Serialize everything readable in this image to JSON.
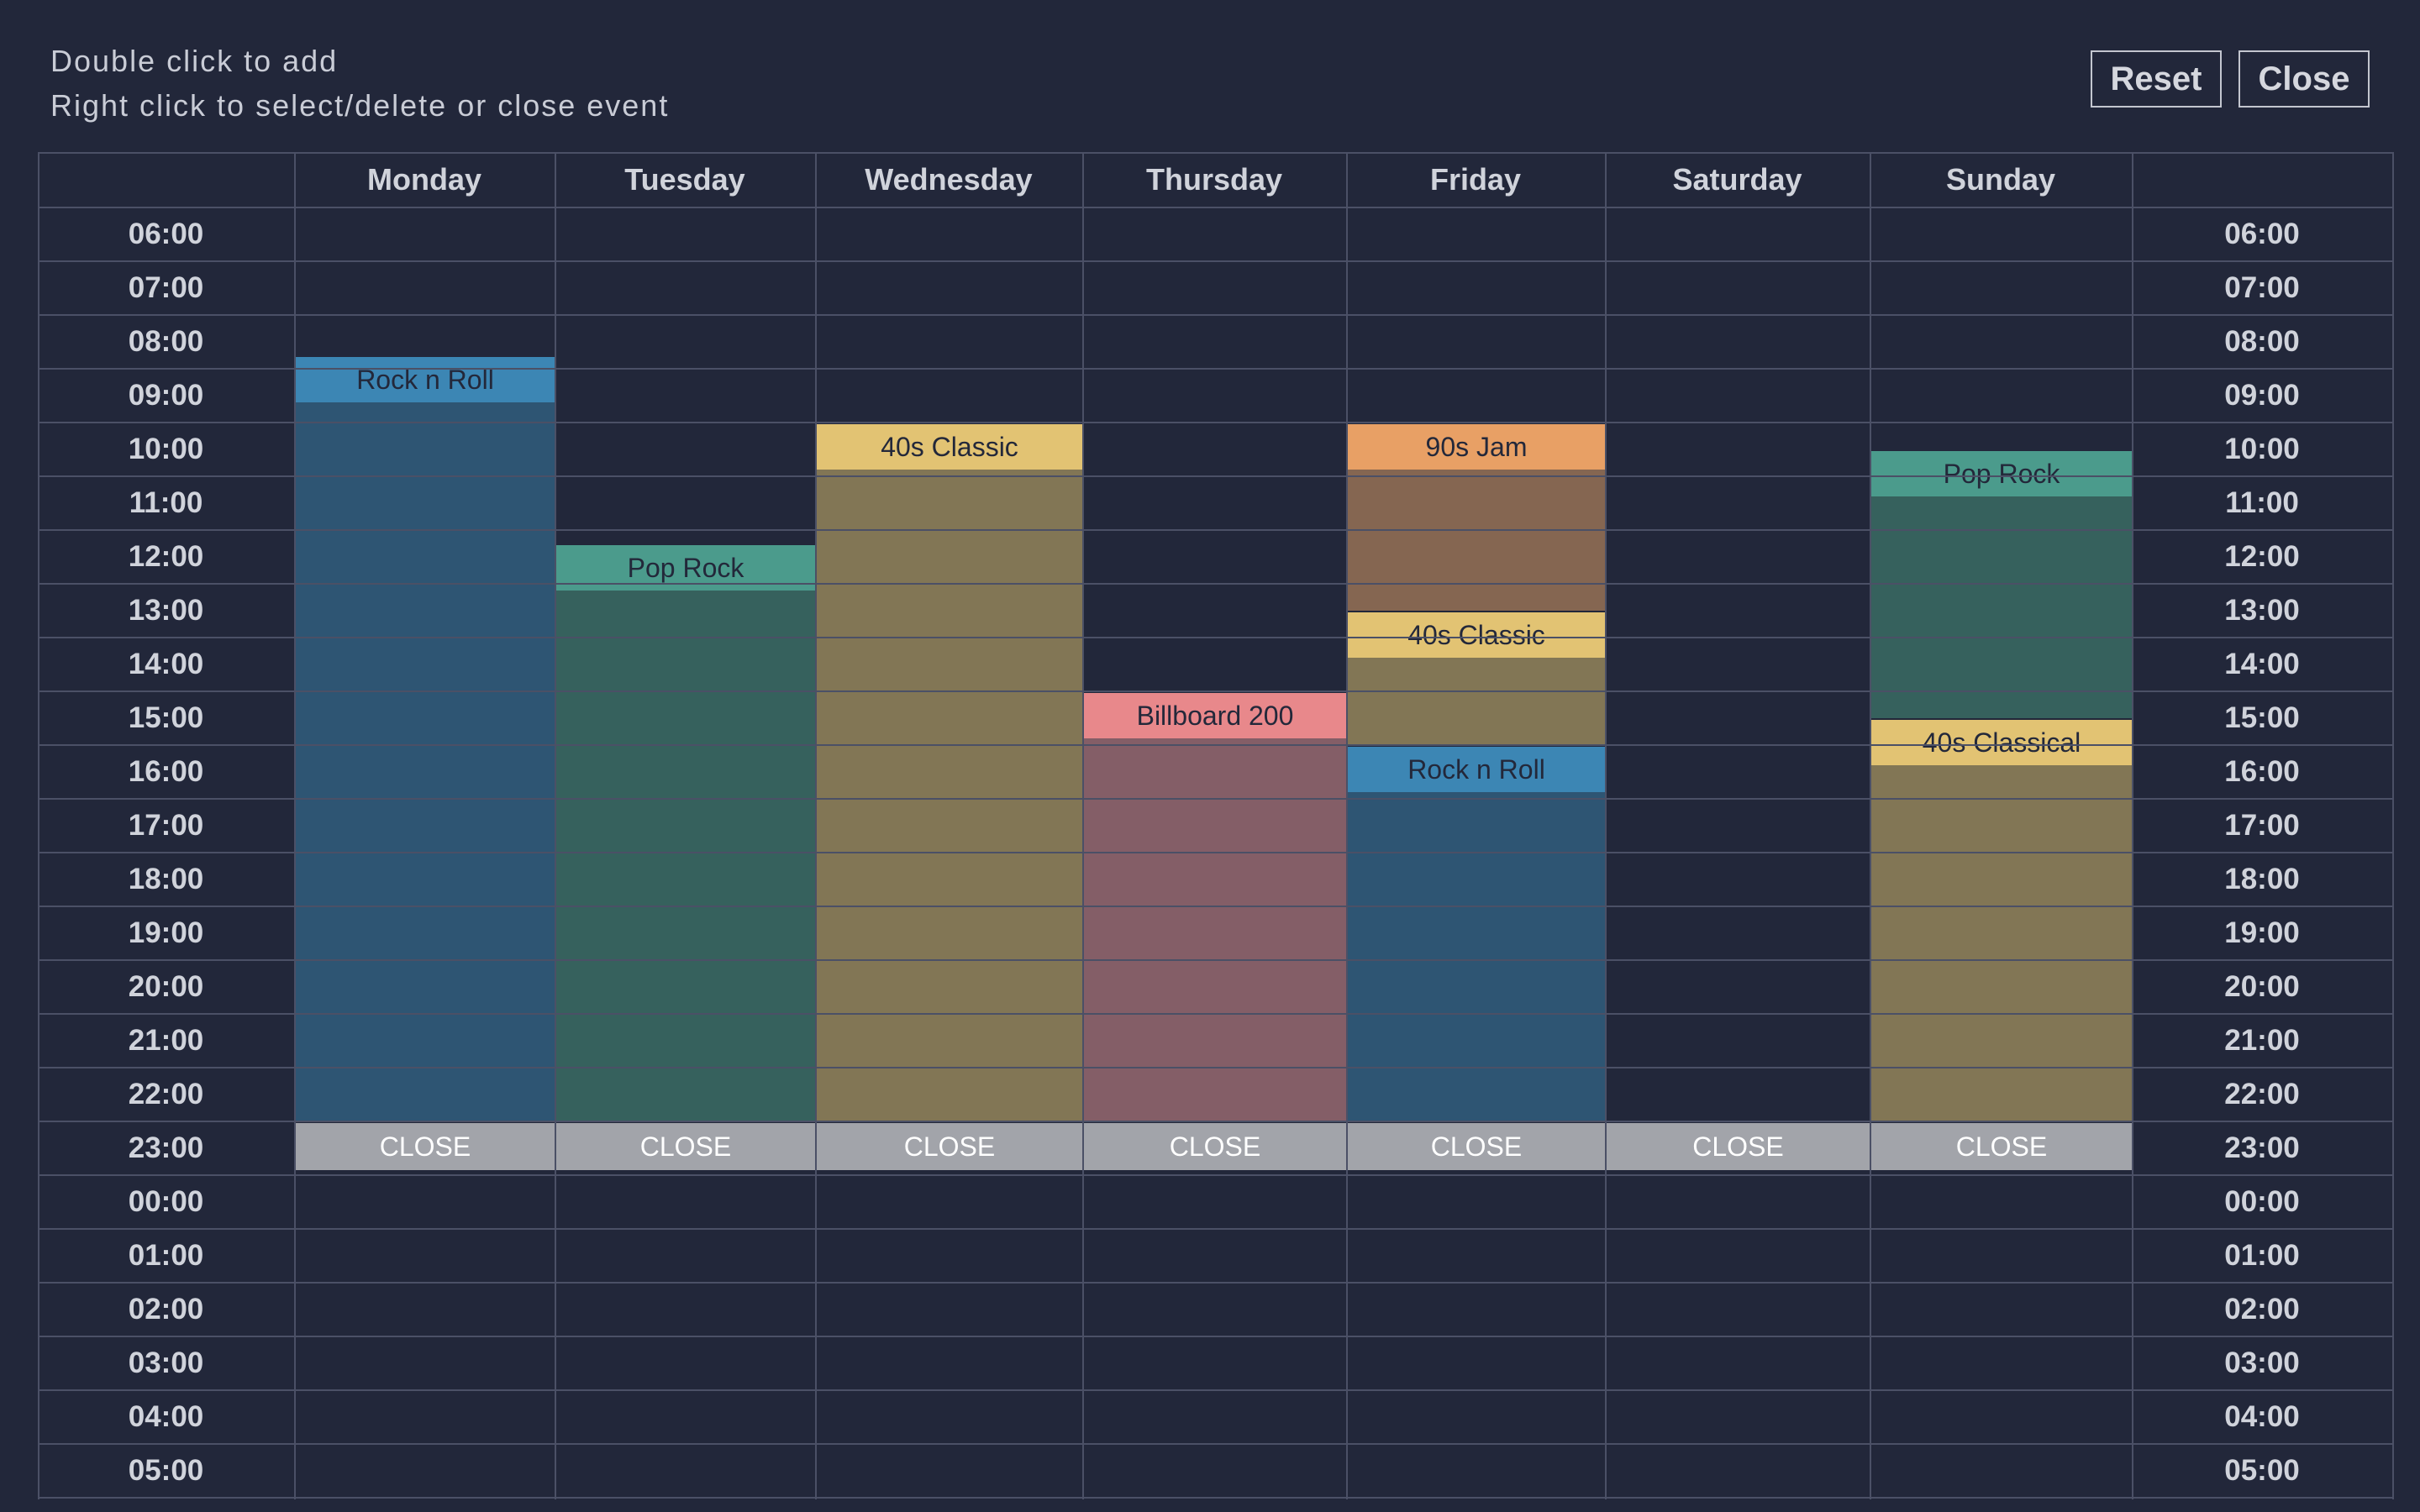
{
  "hints": {
    "line1": "Double click to add",
    "line2": "Right click to select/delete or close event"
  },
  "buttons": {
    "reset": "Reset",
    "close": "Close"
  },
  "days": [
    "Monday",
    "Tuesday",
    "Wednesday",
    "Thursday",
    "Friday",
    "Saturday",
    "Sunday"
  ],
  "hours": [
    "06:00",
    "07:00",
    "08:00",
    "09:00",
    "10:00",
    "11:00",
    "12:00",
    "13:00",
    "14:00",
    "15:00",
    "16:00",
    "17:00",
    "18:00",
    "19:00",
    "20:00",
    "21:00",
    "22:00",
    "23:00",
    "00:00",
    "01:00",
    "02:00",
    "03:00",
    "04:00",
    "05:00"
  ],
  "close_label": "CLOSE",
  "close_time": 23,
  "events": [
    {
      "day": 0,
      "start": 8.75,
      "end": 23,
      "label": "Rock n Roll",
      "color": "#3c86b4",
      "body": "#2e5573"
    },
    {
      "day": 1,
      "start": 12.25,
      "end": 23,
      "label": "Pop Rock",
      "color": "#4b9b8c",
      "body": "#36615d"
    },
    {
      "day": 2,
      "start": 10,
      "end": 23,
      "label": "40s Classic",
      "color": "#e2c373",
      "body": "#827655"
    },
    {
      "day": 3,
      "start": 15,
      "end": 23,
      "label": "Billboard 200",
      "color": "#e8888b",
      "body": "#845e67"
    },
    {
      "day": 4,
      "start": 10,
      "end": 13.5,
      "label": "90s Jam",
      "color": "#e8a065",
      "body": "#856651"
    },
    {
      "day": 4,
      "start": 13.5,
      "end": 16,
      "label": "40s Classic",
      "color": "#e2c373",
      "body": "#827655"
    },
    {
      "day": 4,
      "start": 16,
      "end": 23,
      "label": "Rock n Roll",
      "color": "#3c86b4",
      "body": "#2e5573"
    },
    {
      "day": 6,
      "start": 10.5,
      "end": 15.5,
      "label": "Pop Rock",
      "color": "#4b9b8c",
      "body": "#36615d"
    },
    {
      "day": 6,
      "start": 15.5,
      "end": 23,
      "label": "40s Classical",
      "color": "#e2c373",
      "body": "#827655"
    }
  ]
}
